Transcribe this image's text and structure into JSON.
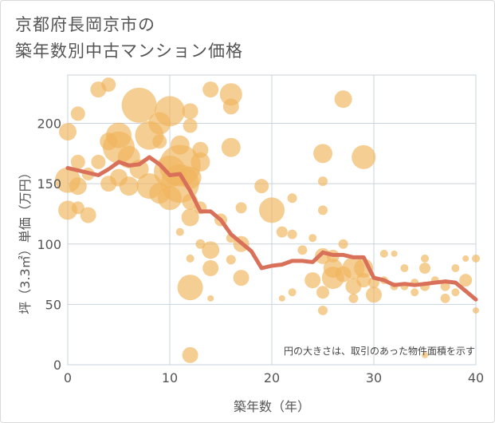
{
  "title_lines": [
    "京都府長岡京市の",
    "築年数別中古マンション価格"
  ],
  "note": "円の大きさは、取引のあった物件面積を示す",
  "colors": {
    "bubble": "#f0b45a",
    "line": "#d9705a",
    "grid": "#c9d3de",
    "text": "#555555"
  },
  "chart_data": {
    "type": "scatter",
    "xlabel": "築年数（年）",
    "ylabel": "坪（3.3㎡）単価（万円）",
    "xlim": [
      0,
      40
    ],
    "ylim": [
      0,
      240
    ],
    "x_ticks": [
      0,
      10,
      20,
      30,
      40
    ],
    "y_ticks": [
      0,
      50,
      100,
      150,
      200
    ],
    "grid": true,
    "bubbles": [
      {
        "x": 3,
        "y": 228,
        "s": 10
      },
      {
        "x": 4,
        "y": 232,
        "s": 9
      },
      {
        "x": 1,
        "y": 208,
        "s": 9
      },
      {
        "x": 0,
        "y": 193,
        "s": 11
      },
      {
        "x": 1,
        "y": 168,
        "s": 9
      },
      {
        "x": 2,
        "y": 158,
        "s": 8
      },
      {
        "x": 0,
        "y": 153,
        "s": 16
      },
      {
        "x": 1,
        "y": 148,
        "s": 11
      },
      {
        "x": 0,
        "y": 128,
        "s": 12
      },
      {
        "x": 2,
        "y": 124,
        "s": 10
      },
      {
        "x": 1,
        "y": 130,
        "s": 8
      },
      {
        "x": 4,
        "y": 150,
        "s": 10
      },
      {
        "x": 3,
        "y": 168,
        "s": 9
      },
      {
        "x": 4,
        "y": 185,
        "s": 11
      },
      {
        "x": 5,
        "y": 190,
        "s": 16
      },
      {
        "x": 5,
        "y": 180,
        "s": 20
      },
      {
        "x": 6,
        "y": 172,
        "s": 14
      },
      {
        "x": 5,
        "y": 155,
        "s": 11
      },
      {
        "x": 6,
        "y": 148,
        "s": 12
      },
      {
        "x": 7,
        "y": 215,
        "s": 22
      },
      {
        "x": 8,
        "y": 190,
        "s": 18
      },
      {
        "x": 9,
        "y": 200,
        "s": 14
      },
      {
        "x": 10,
        "y": 210,
        "s": 19
      },
      {
        "x": 9,
        "y": 185,
        "s": 9
      },
      {
        "x": 7,
        "y": 162,
        "s": 12
      },
      {
        "x": 8,
        "y": 148,
        "s": 16
      },
      {
        "x": 9,
        "y": 142,
        "s": 13
      },
      {
        "x": 10,
        "y": 138,
        "s": 15
      },
      {
        "x": 10,
        "y": 160,
        "s": 20
      },
      {
        "x": 11,
        "y": 165,
        "s": 26
      },
      {
        "x": 11,
        "y": 150,
        "s": 24
      },
      {
        "x": 12,
        "y": 155,
        "s": 14
      },
      {
        "x": 12,
        "y": 210,
        "s": 10
      },
      {
        "x": 12,
        "y": 198,
        "s": 9
      },
      {
        "x": 11,
        "y": 182,
        "s": 12
      },
      {
        "x": 13,
        "y": 178,
        "s": 10
      },
      {
        "x": 13,
        "y": 168,
        "s": 12
      },
      {
        "x": 12,
        "y": 135,
        "s": 10
      },
      {
        "x": 13,
        "y": 130,
        "s": 8
      },
      {
        "x": 12,
        "y": 122,
        "s": 11
      },
      {
        "x": 11,
        "y": 110,
        "s": 5
      },
      {
        "x": 13,
        "y": 100,
        "s": 6
      },
      {
        "x": 12,
        "y": 88,
        "s": 5
      },
      {
        "x": 14,
        "y": 95,
        "s": 11
      },
      {
        "x": 14,
        "y": 80,
        "s": 10
      },
      {
        "x": 12,
        "y": 64,
        "s": 16
      },
      {
        "x": 14,
        "y": 55,
        "s": 4
      },
      {
        "x": 12,
        "y": 8,
        "s": 10
      },
      {
        "x": 14,
        "y": 228,
        "s": 10
      },
      {
        "x": 16,
        "y": 224,
        "s": 14
      },
      {
        "x": 16,
        "y": 214,
        "s": 10
      },
      {
        "x": 16,
        "y": 180,
        "s": 12
      },
      {
        "x": 15,
        "y": 120,
        "s": 8
      },
      {
        "x": 16,
        "y": 105,
        "s": 6
      },
      {
        "x": 17,
        "y": 130,
        "s": 7
      },
      {
        "x": 17,
        "y": 100,
        "s": 10
      },
      {
        "x": 16,
        "y": 87,
        "s": 6
      },
      {
        "x": 17,
        "y": 72,
        "s": 10
      },
      {
        "x": 19,
        "y": 148,
        "s": 9
      },
      {
        "x": 20,
        "y": 128,
        "s": 16
      },
      {
        "x": 21,
        "y": 110,
        "s": 7
      },
      {
        "x": 22,
        "y": 138,
        "s": 6
      },
      {
        "x": 22,
        "y": 108,
        "s": 6
      },
      {
        "x": 22,
        "y": 60,
        "s": 5
      },
      {
        "x": 21,
        "y": 55,
        "s": 4
      },
      {
        "x": 23,
        "y": 95,
        "s": 6
      },
      {
        "x": 24,
        "y": 105,
        "s": 5
      },
      {
        "x": 24,
        "y": 70,
        "s": 10
      },
      {
        "x": 25,
        "y": 175,
        "s": 12
      },
      {
        "x": 25,
        "y": 152,
        "s": 6
      },
      {
        "x": 25,
        "y": 128,
        "s": 6
      },
      {
        "x": 25,
        "y": 90,
        "s": 10
      },
      {
        "x": 25,
        "y": 60,
        "s": 8
      },
      {
        "x": 25,
        "y": 45,
        "s": 6
      },
      {
        "x": 26,
        "y": 80,
        "s": 12
      },
      {
        "x": 26,
        "y": 72,
        "s": 14
      },
      {
        "x": 26,
        "y": 90,
        "s": 8
      },
      {
        "x": 27,
        "y": 220,
        "s": 11
      },
      {
        "x": 27,
        "y": 100,
        "s": 6
      },
      {
        "x": 27,
        "y": 75,
        "s": 10
      },
      {
        "x": 28,
        "y": 80,
        "s": 14
      },
      {
        "x": 28,
        "y": 65,
        "s": 10
      },
      {
        "x": 28,
        "y": 55,
        "s": 6
      },
      {
        "x": 29,
        "y": 172,
        "s": 15
      },
      {
        "x": 29,
        "y": 80,
        "s": 12
      },
      {
        "x": 29,
        "y": 70,
        "s": 9
      },
      {
        "x": 30,
        "y": 58,
        "s": 10
      },
      {
        "x": 30,
        "y": 68,
        "s": 7
      },
      {
        "x": 31,
        "y": 70,
        "s": 5
      },
      {
        "x": 31,
        "y": 92,
        "s": 5
      },
      {
        "x": 32,
        "y": 92,
        "s": 4
      },
      {
        "x": 32,
        "y": 65,
        "s": 5
      },
      {
        "x": 33,
        "y": 65,
        "s": 5
      },
      {
        "x": 33,
        "y": 80,
        "s": 5
      },
      {
        "x": 34,
        "y": 60,
        "s": 5
      },
      {
        "x": 34,
        "y": 68,
        "s": 5
      },
      {
        "x": 35,
        "y": 65,
        "s": 6
      },
      {
        "x": 35,
        "y": 80,
        "s": 7
      },
      {
        "x": 35,
        "y": 88,
        "s": 5
      },
      {
        "x": 36,
        "y": 70,
        "s": 5
      },
      {
        "x": 37,
        "y": 65,
        "s": 6
      },
      {
        "x": 37,
        "y": 55,
        "s": 6
      },
      {
        "x": 38,
        "y": 60,
        "s": 5
      },
      {
        "x": 38,
        "y": 80,
        "s": 5
      },
      {
        "x": 39,
        "y": 88,
        "s": 4
      },
      {
        "x": 39,
        "y": 70,
        "s": 8
      },
      {
        "x": 40,
        "y": 88,
        "s": 5
      },
      {
        "x": 40,
        "y": 45,
        "s": 4
      },
      {
        "x": 35,
        "y": 8,
        "s": 4
      }
    ],
    "series": [
      {
        "x": [
          0,
          1,
          2,
          3,
          4,
          5,
          6,
          7,
          8,
          9,
          10,
          11,
          12,
          13,
          14,
          15,
          16,
          17,
          18,
          19,
          20,
          21,
          22,
          23,
          24,
          25,
          26,
          27,
          28,
          29,
          30,
          31,
          32,
          33,
          34,
          35,
          36,
          37,
          38,
          39,
          40
        ],
        "y": [
          163,
          161,
          159,
          157,
          162,
          168,
          165,
          166,
          172,
          166,
          157,
          158,
          144,
          127,
          127,
          120,
          108,
          101,
          94,
          80,
          82,
          83,
          86,
          86,
          85,
          93,
          91,
          91,
          89,
          89,
          72,
          70,
          66,
          67,
          66,
          67,
          68,
          69,
          68,
          61,
          54
        ]
      }
    ]
  }
}
